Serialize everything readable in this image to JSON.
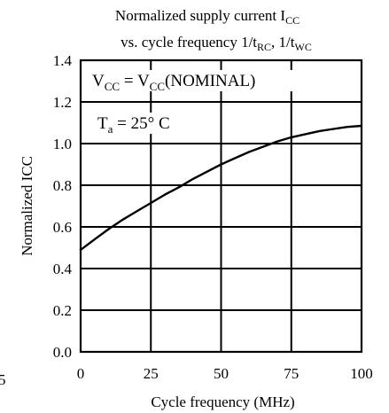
{
  "chart_data": {
    "type": "line",
    "title_line1": "Normalized supply current I",
    "title_line1_sub": "CC",
    "title_line2_a": "vs. cycle frequency 1/t",
    "title_line2_sub_a": "RC",
    "title_line2_b": ", 1/t",
    "title_line2_sub_b": "WC",
    "xlabel": "Cycle frequency (MHz)",
    "ylabel": "Normalized ICC",
    "xlim": [
      0,
      100
    ],
    "ylim": [
      0,
      1.4
    ],
    "x_ticks": [
      0,
      25,
      50,
      75,
      100
    ],
    "x_tick_labels": [
      "0",
      "25",
      "50",
      "75",
      "100"
    ],
    "y_ticks": [
      0,
      0.2,
      0.4,
      0.6,
      0.8,
      1.0,
      1.2,
      1.4
    ],
    "y_tick_labels": [
      "0.0",
      "0.2",
      "0.4",
      "0.6",
      "0.8",
      "1.0",
      "1.2",
      "1.4"
    ],
    "edge_fragment": "5",
    "grid": true,
    "annotations": [
      {
        "parts": [
          {
            "t": "V",
            "sub": false
          },
          {
            "t": "CC",
            "sub": true
          },
          {
            "t": " = V",
            "sub": false
          },
          {
            "t": "CC",
            "sub": true
          },
          {
            "t": "(NOMINAL)",
            "sub": false
          }
        ]
      },
      {
        "parts": [
          {
            "t": "T",
            "sub": false
          },
          {
            "t": "a",
            "sub": true
          },
          {
            "t": " = 25° C",
            "sub": false
          }
        ]
      }
    ],
    "series": [
      {
        "x": [
          0,
          5,
          10,
          15,
          20,
          25,
          30,
          35,
          40,
          45,
          50,
          55,
          60,
          65,
          70,
          75,
          80,
          85,
          90,
          95,
          100
        ],
        "y": [
          0.49,
          0.54,
          0.59,
          0.635,
          0.675,
          0.715,
          0.755,
          0.79,
          0.83,
          0.865,
          0.9,
          0.93,
          0.96,
          0.985,
          1.01,
          1.03,
          1.045,
          1.06,
          1.07,
          1.08,
          1.085
        ]
      }
    ]
  }
}
